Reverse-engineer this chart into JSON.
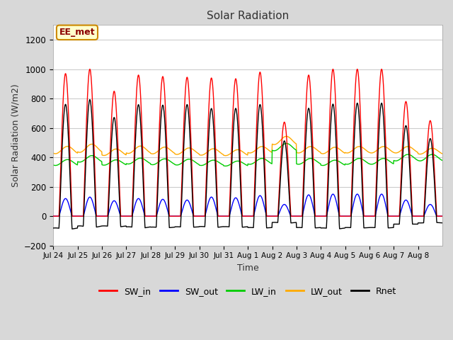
{
  "title": "Solar Radiation",
  "xlabel": "Time",
  "ylabel": "Solar Radiation (W/m2)",
  "ylim": [
    -200,
    1300
  ],
  "yticks": [
    -200,
    0,
    200,
    400,
    600,
    800,
    1000,
    1200
  ],
  "fig_bg_color": "#d8d8d8",
  "plot_bg_color": "#ffffff",
  "grid_color": "#cccccc",
  "colors": {
    "SW_in": "#ff0000",
    "SW_out": "#0000ff",
    "LW_in": "#00cc00",
    "LW_out": "#ffaa00",
    "Rnet": "#000000"
  },
  "annotation": "EE_met",
  "annotation_bbox": {
    "facecolor": "#ffffcc",
    "edgecolor": "#cc8800",
    "linewidth": 1.5
  },
  "n_days": 16,
  "SW_in_peak": [
    970,
    1000,
    850,
    960,
    950,
    945,
    940,
    935,
    980,
    640,
    960,
    1000,
    1000,
    1000,
    780,
    650
  ],
  "SW_out_peak": [
    120,
    130,
    105,
    120,
    115,
    110,
    130,
    125,
    140,
    80,
    145,
    150,
    150,
    150,
    110,
    80
  ],
  "LW_in_base": [
    365,
    390,
    365,
    375,
    370,
    368,
    363,
    358,
    373,
    470,
    373,
    363,
    373,
    373,
    398,
    398
  ],
  "LW_in_amp": [
    20,
    22,
    18,
    20,
    20,
    20,
    18,
    17,
    20,
    25,
    20,
    18,
    20,
    20,
    22,
    22
  ],
  "LW_out_base": [
    450,
    462,
    435,
    452,
    447,
    442,
    437,
    432,
    452,
    515,
    452,
    447,
    452,
    452,
    452,
    442
  ],
  "LW_out_amp": [
    25,
    28,
    22,
    25,
    23,
    22,
    22,
    20,
    22,
    28,
    22,
    22,
    22,
    22,
    22,
    20
  ],
  "tick_labels": [
    "Jul 24",
    "Jul 25",
    "Jul 26",
    "Jul 27",
    "Jul 28",
    "Jul 29",
    "Jul 30",
    "Jul 31",
    "Aug 1",
    "Aug 2",
    "Aug 3",
    "Aug 4",
    "Aug 5",
    "Aug 6",
    "Aug 7",
    "Aug 8"
  ],
  "linewidth": 1.0
}
